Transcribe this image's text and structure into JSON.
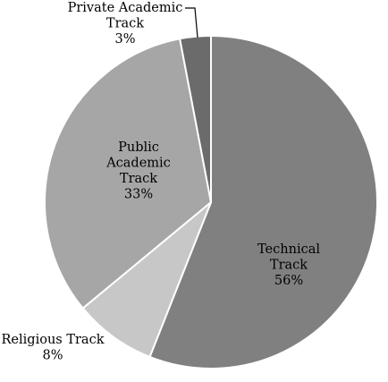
{
  "chart_data": {
    "type": "pie",
    "title": "",
    "start_angle_deg": 0,
    "direction": "clockwise",
    "legend": "none",
    "slices": [
      {
        "label_lines": [
          "Technical",
          "Track",
          "56%"
        ],
        "value": 56,
        "color": "#808080",
        "text_color": "#000000"
      },
      {
        "label_lines": [
          "Religious Track",
          "8%"
        ],
        "value": 8,
        "color": "#c7c7c7",
        "text_color": "#000000"
      },
      {
        "label_lines": [
          "Public",
          "Academic",
          "Track",
          "33%"
        ],
        "value": 33,
        "color": "#a6a6a6",
        "text_color": "#000000"
      },
      {
        "label_lines": [
          "Private Academic",
          "Track",
          "3%"
        ],
        "value": 3,
        "color": "#6b6b6b",
        "text_color": "#000000"
      }
    ]
  }
}
